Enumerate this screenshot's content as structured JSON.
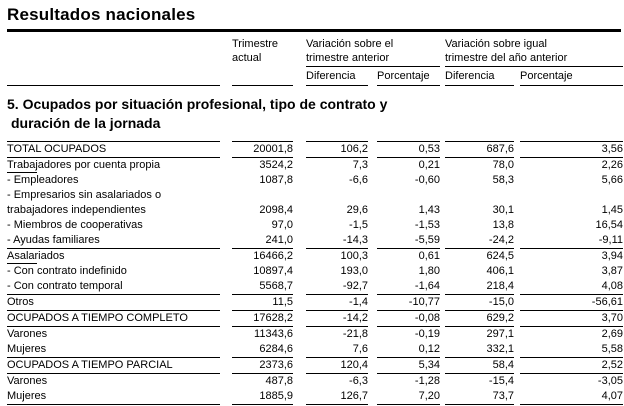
{
  "title": "Resultados nacionales",
  "header": {
    "col_current": {
      "line1": "Trimestre",
      "line2": "actual"
    },
    "group_prev": {
      "line1": "Variación sobre el",
      "line2": "trimestre anterior"
    },
    "group_year": {
      "line1": "Variación sobre igual",
      "line2": "trimestre del año anterior"
    },
    "sub": {
      "diff1": "Diferencia",
      "pct1": "Porcentaje",
      "diff2": "Diferencia",
      "pct2": "Porcentaje"
    }
  },
  "section": {
    "line1": "5. Ocupados por situación profesional, tipo de contrato y",
    "line2": "duración de la jornada"
  },
  "columns": [
    "Trimestre actual",
    "Diferencia",
    "Porcentaje",
    "Diferencia",
    "Porcentaje"
  ],
  "rows": [
    {
      "label": "TOTAL OCUPADOS",
      "values": [
        "20001,8",
        "106,2",
        "0,53",
        "687,6",
        "3,56"
      ],
      "rule_below": true,
      "cat_underline": false
    },
    {
      "label": "Trabajadores por cuenta propia",
      "values": [
        "3524,2",
        "7,3",
        "0,21",
        "78,0",
        "2,26"
      ],
      "rule_below": false,
      "cat_underline": true
    },
    {
      "label": "- Empleadores",
      "values": [
        "1087,8",
        "-6,6",
        "-0,60",
        "58,3",
        "5,66"
      ],
      "rule_below": false,
      "cat_underline": false
    },
    {
      "label": "- Empresarios sin asalariados o",
      "values": [
        "",
        "",
        "",
        "",
        ""
      ],
      "rule_below": false,
      "cat_underline": false
    },
    {
      "label": "trabajadores independientes",
      "values": [
        "2098,4",
        "29,6",
        "1,43",
        "30,1",
        "1,45"
      ],
      "rule_below": false,
      "cat_underline": false
    },
    {
      "label": "- Miembros de cooperativas",
      "values": [
        "97,0",
        "-1,5",
        "-1,53",
        "13,8",
        "16,54"
      ],
      "rule_below": false,
      "cat_underline": false
    },
    {
      "label": "- Ayudas familiares",
      "values": [
        "241,0",
        "-14,3",
        "-5,59",
        "-24,2",
        "-9,11"
      ],
      "rule_below": true,
      "cat_underline": false
    },
    {
      "label": "Asalariados",
      "values": [
        "16466,2",
        "100,3",
        "0,61",
        "624,5",
        "3,94"
      ],
      "rule_below": false,
      "cat_underline": true
    },
    {
      "label": "- Con contrato indefinido",
      "values": [
        "10897,4",
        "193,0",
        "1,80",
        "406,1",
        "3,87"
      ],
      "rule_below": false,
      "cat_underline": false
    },
    {
      "label": "- Con contrato temporal",
      "values": [
        "5568,7",
        "-92,7",
        "-1,64",
        "218,4",
        "4,08"
      ],
      "rule_below": true,
      "cat_underline": false
    },
    {
      "label": "Otros",
      "values": [
        "11,5",
        "-1,4",
        "-10,77",
        "-15,0",
        "-56,61"
      ],
      "rule_below": true,
      "cat_underline": false
    },
    {
      "label": "OCUPADOS A TIEMPO COMPLETO",
      "values": [
        "17628,2",
        "-14,2",
        "-0,08",
        "629,2",
        "3,70"
      ],
      "rule_below": true,
      "cat_underline": false
    },
    {
      "label": "Varones",
      "values": [
        "11343,6",
        "-21,8",
        "-0,19",
        "297,1",
        "2,69"
      ],
      "rule_below": false,
      "cat_underline": false
    },
    {
      "label": "Mujeres",
      "values": [
        "6284,6",
        "7,6",
        "0,12",
        "332,1",
        "5,58"
      ],
      "rule_below": true,
      "cat_underline": false
    },
    {
      "label": "OCUPADOS A TIEMPO PARCIAL",
      "values": [
        "2373,6",
        "120,4",
        "5,34",
        "58,4",
        "2,52"
      ],
      "rule_below": true,
      "cat_underline": false
    },
    {
      "label": "Varones",
      "values": [
        "487,8",
        "-6,3",
        "-1,28",
        "-15,4",
        "-3,05"
      ],
      "rule_below": false,
      "cat_underline": false
    },
    {
      "label": "Mujeres",
      "values": [
        "1885,9",
        "126,7",
        "7,20",
        "73,7",
        "4,07"
      ],
      "rule_below": true,
      "cat_underline": false
    }
  ],
  "colors": {
    "text": "#000000",
    "rule": "#000000",
    "background": "#ffffff"
  }
}
